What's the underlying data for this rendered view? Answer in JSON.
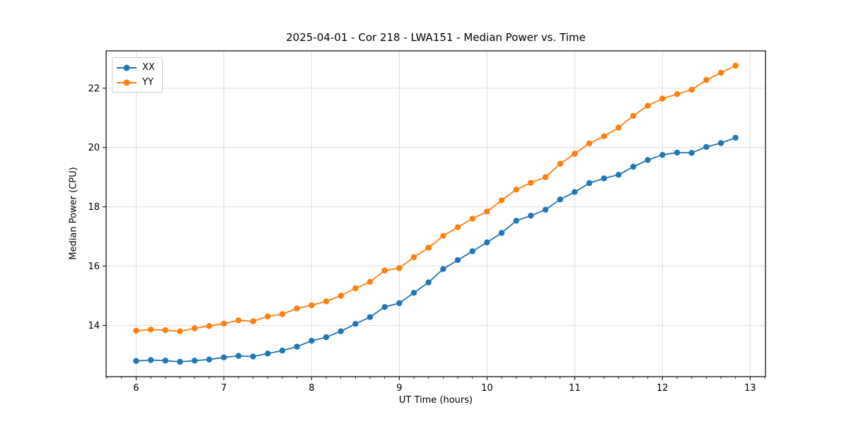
{
  "figure": {
    "background": "#ffffff",
    "grid_color": "#dcdcdc",
    "spine_color": "#000000",
    "tick_color": "#000000"
  },
  "chart_data": {
    "type": "line",
    "title": "2025-04-01 - Cor 218 - LWA151 - Median Power vs. Time",
    "xlabel": "UT Time (hours)",
    "ylabel": "Median Power (CPU)",
    "xlim": [
      5.658,
      13.175
    ],
    "ylim": [
      12.27,
      23.26
    ],
    "x_ticks": [
      6,
      7,
      8,
      9,
      10,
      11,
      12,
      13
    ],
    "y_ticks": [
      14,
      16,
      18,
      20,
      22
    ],
    "x_minor_tick_interval": 0.16667,
    "grid": true,
    "legend_position": "upper-left",
    "x": [
      6.0,
      6.1667,
      6.3333,
      6.5,
      6.6667,
      6.8333,
      7.0,
      7.1667,
      7.3333,
      7.5,
      7.6667,
      7.8333,
      8.0,
      8.1667,
      8.3333,
      8.5,
      8.6667,
      8.8333,
      9.0,
      9.1667,
      9.3333,
      9.5,
      9.6667,
      9.8333,
      10.0,
      10.1667,
      10.3333,
      10.5,
      10.6667,
      10.8333,
      11.0,
      11.1667,
      11.3333,
      11.5,
      11.6667,
      11.8333,
      12.0,
      12.1667,
      12.3333,
      12.5,
      12.6667,
      12.8333
    ],
    "series": [
      {
        "name": "XX",
        "color": "#1f77b4",
        "marker": "circle",
        "values": [
          12.8,
          12.83,
          12.81,
          12.77,
          12.81,
          12.85,
          12.92,
          12.97,
          12.95,
          13.05,
          13.15,
          13.28,
          13.48,
          13.6,
          13.8,
          14.05,
          14.28,
          14.62,
          14.75,
          15.1,
          15.45,
          15.9,
          16.2,
          16.5,
          16.8,
          17.12,
          17.53,
          17.7,
          17.9,
          18.25,
          18.5,
          18.8,
          18.96,
          19.08,
          19.35,
          19.58,
          19.75,
          19.83,
          19.82,
          20.02,
          20.15,
          20.33
        ]
      },
      {
        "name": "YY",
        "color": "#ff7f0e",
        "marker": "circle",
        "values": [
          13.82,
          13.86,
          13.84,
          13.8,
          13.9,
          13.98,
          14.06,
          14.17,
          14.14,
          14.3,
          14.38,
          14.57,
          14.68,
          14.81,
          15.0,
          15.25,
          15.47,
          15.85,
          15.93,
          16.3,
          16.62,
          17.02,
          17.31,
          17.6,
          17.84,
          18.22,
          18.58,
          18.81,
          19.0,
          19.45,
          19.79,
          20.14,
          20.38,
          20.67,
          21.07,
          21.41,
          21.65,
          21.8,
          21.95,
          22.28,
          22.52,
          22.76
        ]
      }
    ]
  }
}
